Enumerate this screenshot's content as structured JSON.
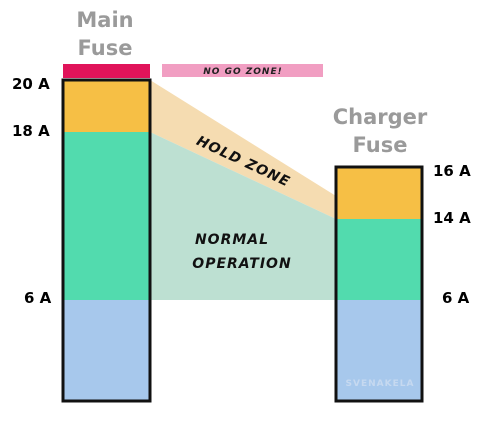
{
  "main_fuse": {
    "title_line1": "Main",
    "title_line2": "Fuse"
  },
  "charger_fuse": {
    "title_line1": "Charger",
    "title_line2": "Fuse"
  },
  "labels": {
    "main_20": "20 A",
    "main_18": "18 A",
    "main_6": "6 A",
    "charger_16": "16 A",
    "charger_14": "14 A",
    "charger_6": "6 A"
  },
  "zones": {
    "no_go": "NO GO ZONE!",
    "hold": "HOLD ZONE",
    "normal_line1": "NORMAL",
    "normal_line2": "OPERATION"
  },
  "watermark": "SVENAKELA",
  "colors": {
    "title_gray": "#9a9a9a",
    "red": "#e0145a",
    "pink": "#f19ec2",
    "orange": "#f6bf45",
    "green": "#52dbae",
    "blue": "#a7c8ec",
    "hold_band": "#f5dcb1",
    "normal_band": "#bde0d2",
    "outline": "#111111"
  }
}
